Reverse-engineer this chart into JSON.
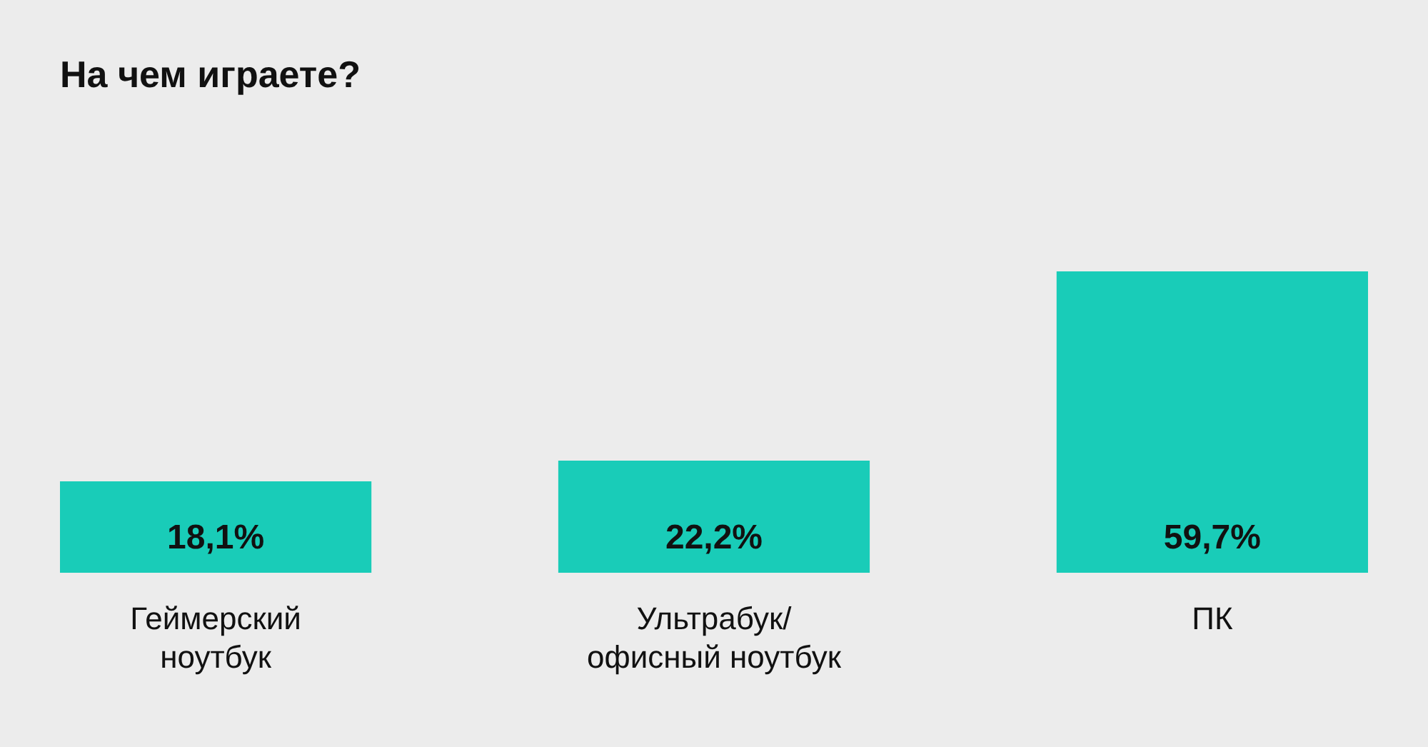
{
  "chart_data": {
    "type": "bar",
    "title": "На чем играете?",
    "categories": [
      "Геймерский\nноутбук",
      "Ультрабук/\nофисный ноутбук",
      "ПК"
    ],
    "values": [
      18.1,
      22.2,
      59.7
    ],
    "value_labels": [
      "18,1%",
      "22,2%",
      "59,7%"
    ],
    "color": "#19ccb8",
    "grid": false
  }
}
